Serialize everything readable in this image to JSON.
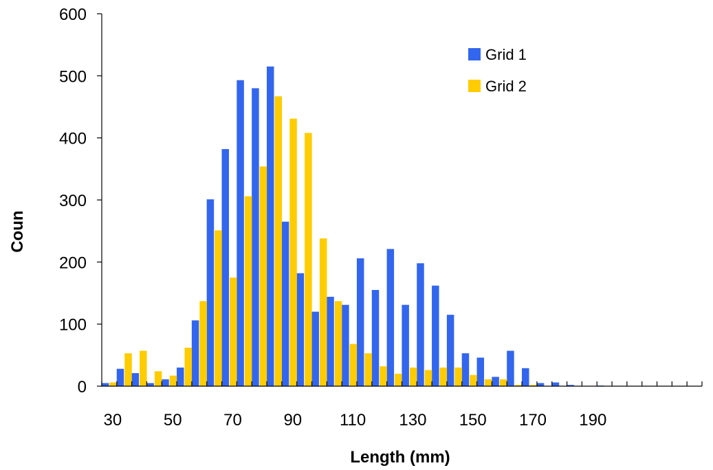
{
  "chart_data": {
    "type": "bar",
    "xlabel": "Length (mm)",
    "ylabel": "Coun",
    "ylim": [
      0,
      600
    ],
    "yticks": [
      0,
      100,
      200,
      300,
      400,
      500,
      600
    ],
    "xtick_labels": [
      "30",
      "50",
      "70",
      "90",
      "110",
      "130",
      "150",
      "170",
      "190"
    ],
    "categories": [
      30,
      35,
      40,
      45,
      50,
      55,
      60,
      65,
      70,
      75,
      80,
      85,
      90,
      95,
      100,
      105,
      110,
      115,
      120,
      125,
      130,
      135,
      140,
      145,
      150,
      155,
      160,
      165,
      170,
      175,
      180,
      185,
      190,
      195,
      200,
      205,
      210,
      215,
      220,
      225
    ],
    "legend_position": "top-right",
    "grid": false,
    "series": [
      {
        "name": "Grid 1",
        "color": "#3366ee",
        "values": [
          5,
          28,
          21,
          5,
          11,
          30,
          106,
          301,
          382,
          493,
          480,
          515,
          265,
          182,
          120,
          144,
          131,
          206,
          155,
          221,
          131,
          198,
          162,
          115,
          53,
          46,
          15,
          57,
          29,
          5,
          6,
          2,
          0,
          1,
          0,
          0,
          0,
          0,
          0,
          0
        ]
      },
      {
        "name": "Grid 2",
        "color": "#ffcc00",
        "values": [
          6,
          53,
          57,
          24,
          17,
          62,
          137,
          251,
          175,
          306,
          354,
          467,
          431,
          408,
          238,
          137,
          68,
          53,
          32,
          20,
          30,
          26,
          30,
          30,
          18,
          11,
          11,
          2,
          2,
          0,
          0,
          0,
          0,
          0,
          0,
          0,
          0,
          0,
          0,
          0
        ]
      }
    ]
  }
}
